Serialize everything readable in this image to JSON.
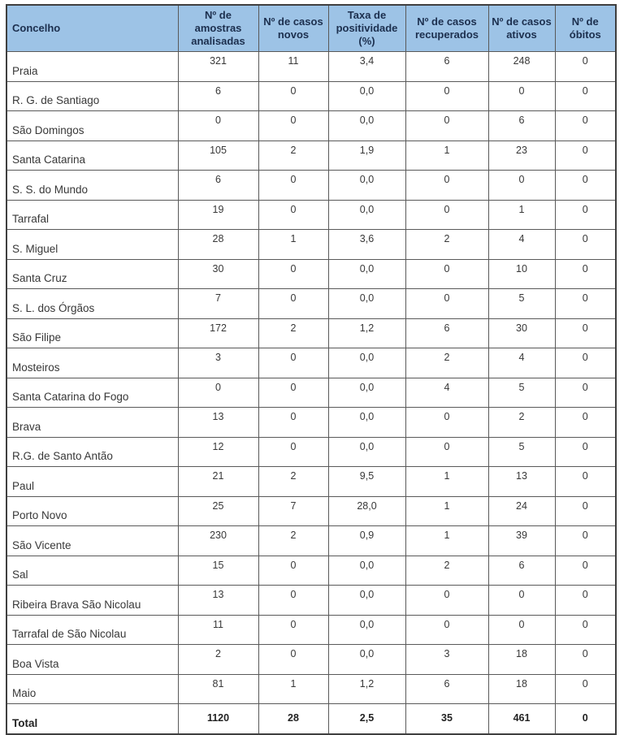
{
  "table": {
    "columns": [
      {
        "label": "Concelho"
      },
      {
        "label": "Nº de amostras analisadas"
      },
      {
        "label": "Nº de casos novos"
      },
      {
        "label": "Taxa de positividade (%)"
      },
      {
        "label": "Nº de casos recuperados"
      },
      {
        "label": "Nº de casos ativos"
      },
      {
        "label": "Nº de óbitos"
      }
    ],
    "rows": [
      {
        "name": "Praia",
        "values": [
          "321",
          "11",
          "3,4",
          "6",
          "248",
          "0"
        ]
      },
      {
        "name": "R. G. de Santiago",
        "values": [
          "6",
          "0",
          "0,0",
          "0",
          "0",
          "0"
        ]
      },
      {
        "name": "São Domingos",
        "values": [
          "0",
          "0",
          "0,0",
          "0",
          "6",
          "0"
        ]
      },
      {
        "name": "Santa Catarina",
        "values": [
          "105",
          "2",
          "1,9",
          "1",
          "23",
          "0"
        ]
      },
      {
        "name": "S. S. do Mundo",
        "values": [
          "6",
          "0",
          "0,0",
          "0",
          "0",
          "0"
        ]
      },
      {
        "name": "Tarrafal",
        "values": [
          "19",
          "0",
          "0,0",
          "0",
          "1",
          "0"
        ]
      },
      {
        "name": "S. Miguel",
        "values": [
          "28",
          "1",
          "3,6",
          "2",
          "4",
          "0"
        ]
      },
      {
        "name": "Santa Cruz",
        "values": [
          "30",
          "0",
          "0,0",
          "0",
          "10",
          "0"
        ]
      },
      {
        "name": "S. L. dos Órgãos",
        "values": [
          "7",
          "0",
          "0,0",
          "0",
          "5",
          "0"
        ]
      },
      {
        "name": "São Filipe",
        "values": [
          "172",
          "2",
          "1,2",
          "6",
          "30",
          "0"
        ]
      },
      {
        "name": "Mosteiros",
        "values": [
          "3",
          "0",
          "0,0",
          "2",
          "4",
          "0"
        ]
      },
      {
        "name": "Santa Catarina do Fogo",
        "values": [
          "0",
          "0",
          "0,0",
          "4",
          "5",
          "0"
        ]
      },
      {
        "name": "Brava",
        "values": [
          "13",
          "0",
          "0,0",
          "0",
          "2",
          "0"
        ]
      },
      {
        "name": "R.G. de Santo Antão",
        "values": [
          "12",
          "0",
          "0,0",
          "0",
          "5",
          "0"
        ]
      },
      {
        "name": "Paul",
        "values": [
          "21",
          "2",
          "9,5",
          "1",
          "13",
          "0"
        ]
      },
      {
        "name": "Porto Novo",
        "values": [
          "25",
          "7",
          "28,0",
          "1",
          "24",
          "0"
        ]
      },
      {
        "name": "São Vicente",
        "values": [
          "230",
          "2",
          "0,9",
          "1",
          "39",
          "0"
        ]
      },
      {
        "name": "Sal",
        "values": [
          "15",
          "0",
          "0,0",
          "2",
          "6",
          "0"
        ]
      },
      {
        "name": "Ribeira Brava São Nicolau",
        "values": [
          "13",
          "0",
          "0,0",
          "0",
          "0",
          "0"
        ]
      },
      {
        "name": "Tarrafal de São Nicolau",
        "values": [
          "11",
          "0",
          "0,0",
          "0",
          "0",
          "0"
        ]
      },
      {
        "name": "Boa Vista",
        "values": [
          "2",
          "0",
          "0,0",
          "3",
          "18",
          "0"
        ]
      },
      {
        "name": "Maio",
        "values": [
          "81",
          "1",
          "1,2",
          "6",
          "18",
          "0"
        ]
      }
    ],
    "total": {
      "name": "Total",
      "values": [
        "1120",
        "28",
        "2,5",
        "35",
        "461",
        "0"
      ]
    },
    "colors": {
      "header_bg": "#9DC3E6",
      "header_text": "#1C2F4E",
      "body_text": "#383838",
      "border": "#595959"
    }
  }
}
